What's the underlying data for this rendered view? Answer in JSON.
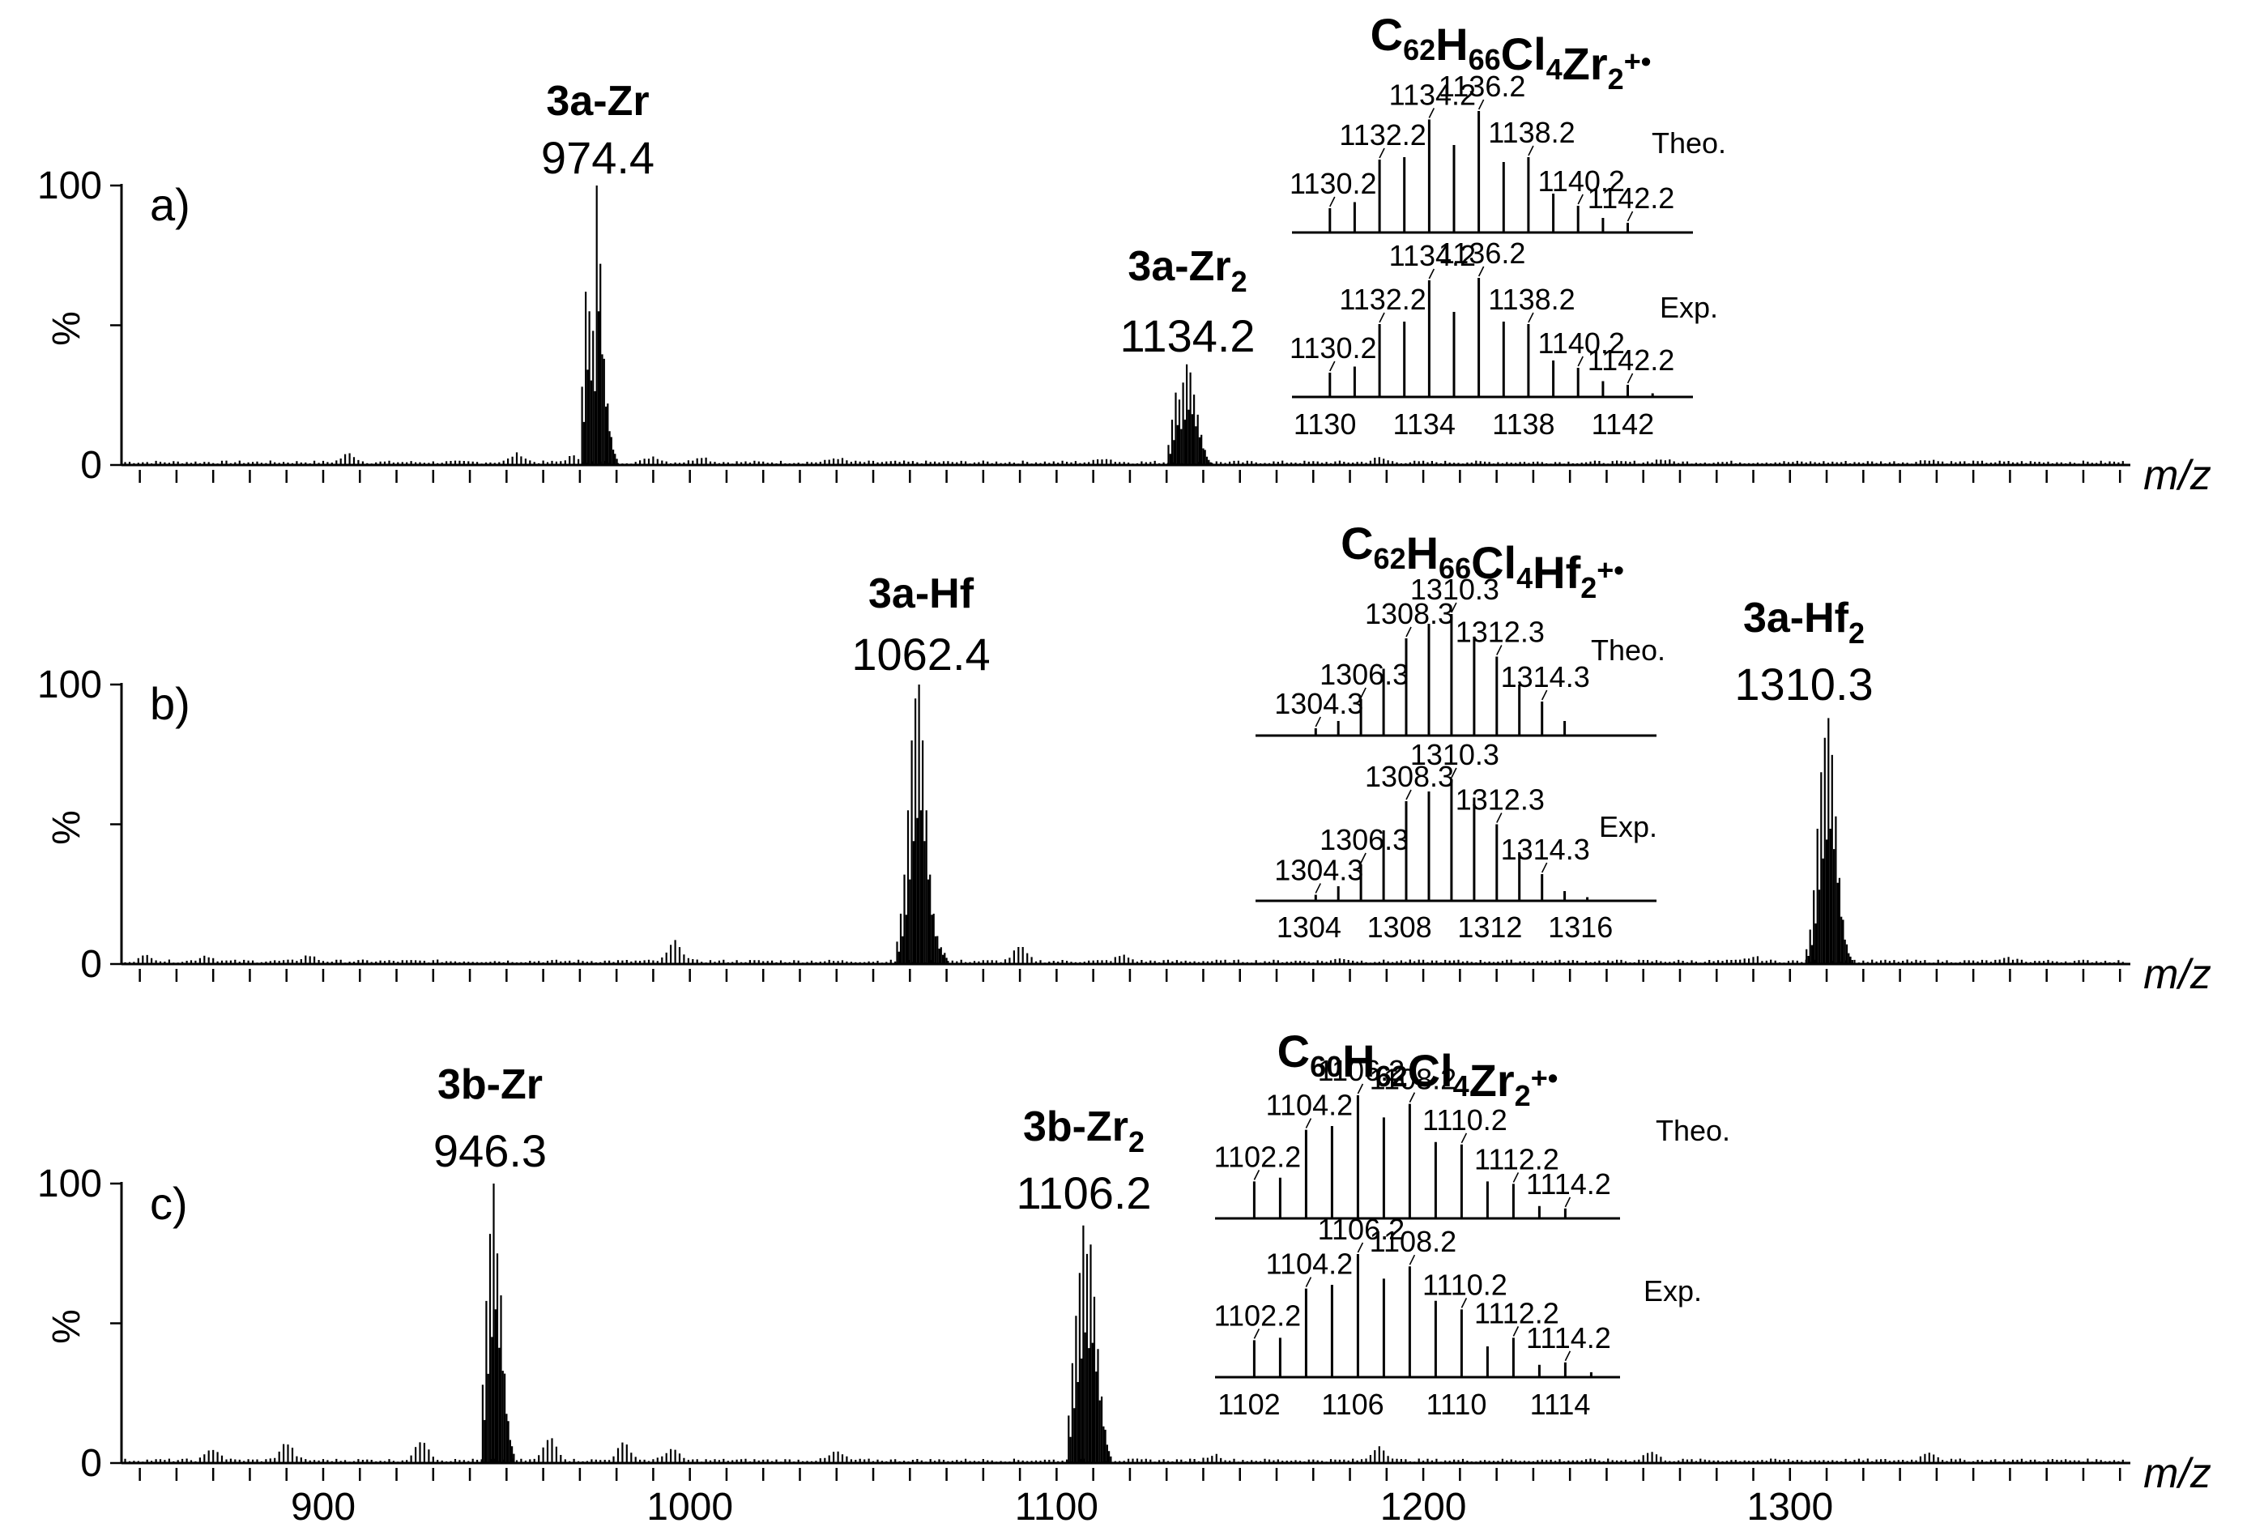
{
  "chart_data": {
    "type": "mass-spectrum",
    "xaxis": {
      "label": "m/z",
      "range": [
        850,
        1393
      ],
      "tick_labels": [
        "900",
        "1000",
        "1100",
        "1200",
        "1300"
      ],
      "minor_tick_step": 10
    },
    "yaxis": {
      "label": "%",
      "range": [
        0,
        100
      ],
      "tick_labels": [
        "0",
        "100"
      ]
    },
    "panels": [
      {
        "id": "a",
        "panel_label": "a)",
        "peaks": [
          {
            "name": "3a-Zr",
            "mz_label": "974.4",
            "center": 974.6,
            "height": 100,
            "envelope": [
              [
                -4,
                0.28
              ],
              [
                -3,
                0.62
              ],
              [
                -2,
                0.55
              ],
              [
                -1,
                0.48
              ],
              [
                0,
                1.0
              ],
              [
                1,
                0.72
              ],
              [
                2,
                0.38
              ],
              [
                3,
                0.22
              ],
              [
                4,
                0.1
              ],
              [
                5,
                0.04
              ]
            ]
          },
          {
            "name": "3a-Zr₂",
            "mz_label": "1134.2",
            "center": 1135.5,
            "height": 36,
            "envelope": [
              [
                -5,
                0.2
              ],
              [
                -4,
                0.45
              ],
              [
                -3,
                0.72
              ],
              [
                -2,
                0.65
              ],
              [
                -1,
                0.82
              ],
              [
                0,
                1.0
              ],
              [
                1,
                0.92
              ],
              [
                2,
                0.7
              ],
              [
                3,
                0.5
              ],
              [
                4,
                0.3
              ],
              [
                5,
                0.15
              ],
              [
                6,
                0.05
              ]
            ]
          }
        ],
        "minor_humps": [
          [
            907,
            3
          ],
          [
            953,
            3
          ],
          [
            968,
            2
          ],
          [
            990,
            2
          ],
          [
            1003,
            2
          ],
          [
            1040,
            1.5
          ],
          [
            1113,
            1.5
          ],
          [
            1188,
            1.5
          ],
          [
            1265,
            1
          ],
          [
            1338,
            1
          ]
        ],
        "inset": {
          "formula": {
            "base": "C",
            "parts": [
              [
                "C",
                "62"
              ],
              [
                "H",
                "66"
              ],
              [
                "Cl",
                "4"
              ],
              [
                "Zr",
                "2"
              ]
            ],
            "charge": "+•"
          },
          "theo_label": "Theo.",
          "exp_label": "Exp.",
          "mz_min": 1129,
          "mz_max": 1144.5,
          "theo": [
            [
              1130.2,
              0.2
            ],
            [
              1131.2,
              0.25
            ],
            [
              1132.2,
              0.6
            ],
            [
              1133.2,
              0.62
            ],
            [
              1134.2,
              0.93
            ],
            [
              1135.2,
              0.72
            ],
            [
              1136.2,
              1.0
            ],
            [
              1137.2,
              0.58
            ],
            [
              1138.2,
              0.62
            ],
            [
              1139.2,
              0.32
            ],
            [
              1140.2,
              0.22
            ],
            [
              1141.2,
              0.12
            ],
            [
              1142.2,
              0.08
            ]
          ],
          "exp": [
            [
              1130.2,
              0.2
            ],
            [
              1131.2,
              0.25
            ],
            [
              1132.2,
              0.6
            ],
            [
              1133.2,
              0.62
            ],
            [
              1134.2,
              0.96
            ],
            [
              1135.2,
              0.7
            ],
            [
              1136.2,
              0.98
            ],
            [
              1137.2,
              0.62
            ],
            [
              1138.2,
              0.6
            ],
            [
              1139.2,
              0.3
            ],
            [
              1140.2,
              0.24
            ],
            [
              1141.2,
              0.13
            ],
            [
              1142.2,
              0.1
            ],
            [
              1143.2,
              0.03
            ]
          ],
          "theo_labels": [
            "1130.2",
            "1132.2",
            "1134.2",
            "1136.2",
            "1138.2",
            "1140.2",
            "1142.2"
          ],
          "exp_labels": [
            "1130.2",
            "1132.2",
            "1134.2",
            "1136.2",
            "1138.2",
            "1140.2",
            "1142.2"
          ],
          "axis_ticks": [
            "1130",
            "1134",
            "1138",
            "1142"
          ]
        }
      },
      {
        "id": "b",
        "panel_label": "b)",
        "peaks": [
          {
            "name": "3a-Hf",
            "mz_label": "1062.4",
            "center": 1062.5,
            "height": 100,
            "envelope": [
              [
                -6,
                0.08
              ],
              [
                -5,
                0.18
              ],
              [
                -4,
                0.32
              ],
              [
                -3,
                0.55
              ],
              [
                -2,
                0.8
              ],
              [
                -1,
                0.95
              ],
              [
                0,
                1.0
              ],
              [
                1,
                0.8
              ],
              [
                2,
                0.55
              ],
              [
                3,
                0.32
              ],
              [
                4,
                0.18
              ],
              [
                5,
                0.1
              ],
              [
                6,
                0.06
              ],
              [
                7,
                0.04
              ]
            ]
          },
          {
            "name": "3a-Hf₂",
            "mz_label": "1310.3",
            "center": 1310.5,
            "height": 88,
            "envelope": [
              [
                -6,
                0.06
              ],
              [
                -5,
                0.14
              ],
              [
                -4,
                0.3
              ],
              [
                -3,
                0.55
              ],
              [
                -2,
                0.78
              ],
              [
                -1,
                0.92
              ],
              [
                0,
                1.0
              ],
              [
                1,
                0.85
              ],
              [
                2,
                0.6
              ],
              [
                3,
                0.35
              ],
              [
                4,
                0.18
              ],
              [
                5,
                0.08
              ],
              [
                6,
                0.03
              ]
            ]
          }
        ],
        "minor_humps": [
          [
            852,
            2
          ],
          [
            868,
            2
          ],
          [
            896,
            2
          ],
          [
            996,
            7
          ],
          [
            1090,
            5
          ],
          [
            1118,
            2
          ],
          [
            1178,
            1
          ],
          [
            1290,
            1.5
          ],
          [
            1360,
            1
          ]
        ],
        "inset": {
          "formula": {
            "base": "C",
            "parts": [
              [
                "C",
                "62"
              ],
              [
                "H",
                "66"
              ],
              [
                "Cl",
                "4"
              ],
              [
                "Hf",
                "2"
              ]
            ],
            "charge": "+•"
          },
          "theo_label": "Theo.",
          "exp_label": "Exp.",
          "mz_min": 1302,
          "mz_max": 1319,
          "theo": [
            [
              1304.3,
              0.06
            ],
            [
              1305.3,
              0.12
            ],
            [
              1306.3,
              0.3
            ],
            [
              1307.3,
              0.55
            ],
            [
              1308.3,
              0.8
            ],
            [
              1309.3,
              0.92
            ],
            [
              1310.3,
              1.0
            ],
            [
              1311.3,
              0.8
            ],
            [
              1312.3,
              0.65
            ],
            [
              1313.3,
              0.42
            ],
            [
              1314.3,
              0.28
            ],
            [
              1315.3,
              0.12
            ]
          ],
          "exp": [
            [
              1304.3,
              0.05
            ],
            [
              1305.3,
              0.12
            ],
            [
              1306.3,
              0.3
            ],
            [
              1307.3,
              0.58
            ],
            [
              1308.3,
              0.82
            ],
            [
              1309.3,
              0.9
            ],
            [
              1310.3,
              1.0
            ],
            [
              1311.3,
              0.85
            ],
            [
              1312.3,
              0.63
            ],
            [
              1313.3,
              0.4
            ],
            [
              1314.3,
              0.22
            ],
            [
              1315.3,
              0.08
            ],
            [
              1316.3,
              0.03
            ]
          ],
          "theo_labels": [
            "1304.3",
            "1306.3",
            "1308.3",
            "1310.3",
            "1312.3",
            "1314.3"
          ],
          "exp_labels": [
            "1304.3",
            "1306.3",
            "1308.3",
            "1310.3",
            "1312.3",
            "1314.3"
          ],
          "axis_ticks": [
            "1304",
            "1308",
            "1312",
            "1316"
          ]
        }
      },
      {
        "id": "c",
        "panel_label": "c)",
        "peaks": [
          {
            "name": "3b-Zr",
            "mz_label": "946.3",
            "center": 946.5,
            "height": 100,
            "envelope": [
              [
                -3,
                0.28
              ],
              [
                -2,
                0.58
              ],
              [
                -1,
                0.82
              ],
              [
                0,
                1.0
              ],
              [
                1,
                0.75
              ],
              [
                2,
                0.6
              ],
              [
                3,
                0.32
              ],
              [
                4,
                0.15
              ],
              [
                5,
                0.06
              ]
            ]
          },
          {
            "name": "3b-Zr₂",
            "mz_label": "1106.2",
            "center": 1108.3,
            "height": 85,
            "envelope": [
              [
                -5,
                0.2
              ],
              [
                -4,
                0.42
              ],
              [
                -3,
                0.62
              ],
              [
                -2,
                0.8
              ],
              [
                -1,
                1.0
              ],
              [
                0,
                0.88
              ],
              [
                1,
                0.92
              ],
              [
                2,
                0.7
              ],
              [
                3,
                0.48
              ],
              [
                4,
                0.28
              ],
              [
                5,
                0.14
              ],
              [
                6,
                0.05
              ]
            ]
          }
        ],
        "minor_humps": [
          [
            870,
            4
          ],
          [
            890,
            6
          ],
          [
            927,
            7
          ],
          [
            962,
            8
          ],
          [
            982,
            6
          ],
          [
            995,
            4
          ],
          [
            1040,
            3
          ],
          [
            1143,
            2
          ],
          [
            1188,
            5
          ],
          [
            1262,
            3
          ],
          [
            1338,
            3
          ]
        ],
        "inset": {
          "formula": {
            "base": "C",
            "parts": [
              [
                "C",
                "60"
              ],
              [
                "H",
                "62"
              ],
              [
                "Cl",
                "4"
              ],
              [
                "Zr",
                "2"
              ]
            ],
            "charge": "+•"
          },
          "theo_label": "Theo.",
          "exp_label": "Exp.",
          "mz_min": 1101,
          "mz_max": 1116,
          "theo": [
            [
              1102.2,
              0.3
            ],
            [
              1103.2,
              0.33
            ],
            [
              1104.2,
              0.72
            ],
            [
              1105.2,
              0.75
            ],
            [
              1106.2,
              1.0
            ],
            [
              1107.2,
              0.82
            ],
            [
              1108.2,
              0.93
            ],
            [
              1109.2,
              0.62
            ],
            [
              1110.2,
              0.6
            ],
            [
              1111.2,
              0.3
            ],
            [
              1112.2,
              0.28
            ],
            [
              1113.2,
              0.1
            ],
            [
              1114.2,
              0.08
            ]
          ],
          "exp": [
            [
              1102.2,
              0.3
            ],
            [
              1103.2,
              0.32
            ],
            [
              1104.2,
              0.72
            ],
            [
              1105.2,
              0.75
            ],
            [
              1106.2,
              1.0
            ],
            [
              1107.2,
              0.8
            ],
            [
              1108.2,
              0.9
            ],
            [
              1109.2,
              0.62
            ],
            [
              1110.2,
              0.55
            ],
            [
              1111.2,
              0.25
            ],
            [
              1112.2,
              0.32
            ],
            [
              1113.2,
              0.1
            ],
            [
              1114.2,
              0.12
            ],
            [
              1115.2,
              0.04
            ]
          ],
          "theo_labels": [
            "1102.2",
            "1104.2",
            "1106.2",
            "1108.2",
            "1110.2",
            "1112.2",
            "1114.2"
          ],
          "exp_labels": [
            "1102.2",
            "1104.2",
            "1106.2",
            "1108.2",
            "1110.2",
            "1112.2",
            "1114.2"
          ],
          "axis_ticks": [
            "1102",
            "1106",
            "1110",
            "1114"
          ]
        }
      }
    ]
  }
}
